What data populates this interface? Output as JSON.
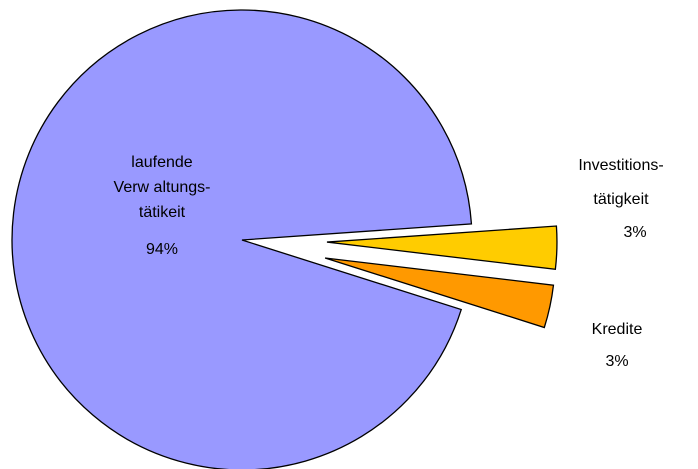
{
  "chart_data": {
    "type": "pie",
    "categories": [
      [
        "Investitions-",
        "tätigkeit"
      ],
      [
        "Kredite"
      ],
      [
        "laufende",
        "Verw altungs-",
        "tätikeit"
      ]
    ],
    "values": [
      3,
      3,
      94
    ],
    "value_labels": [
      "3%",
      "3%",
      "94%"
    ],
    "colors": [
      "#ffcc00",
      "#ff9900",
      "#9999ff"
    ],
    "exploded": [
      true,
      true,
      false
    ]
  }
}
